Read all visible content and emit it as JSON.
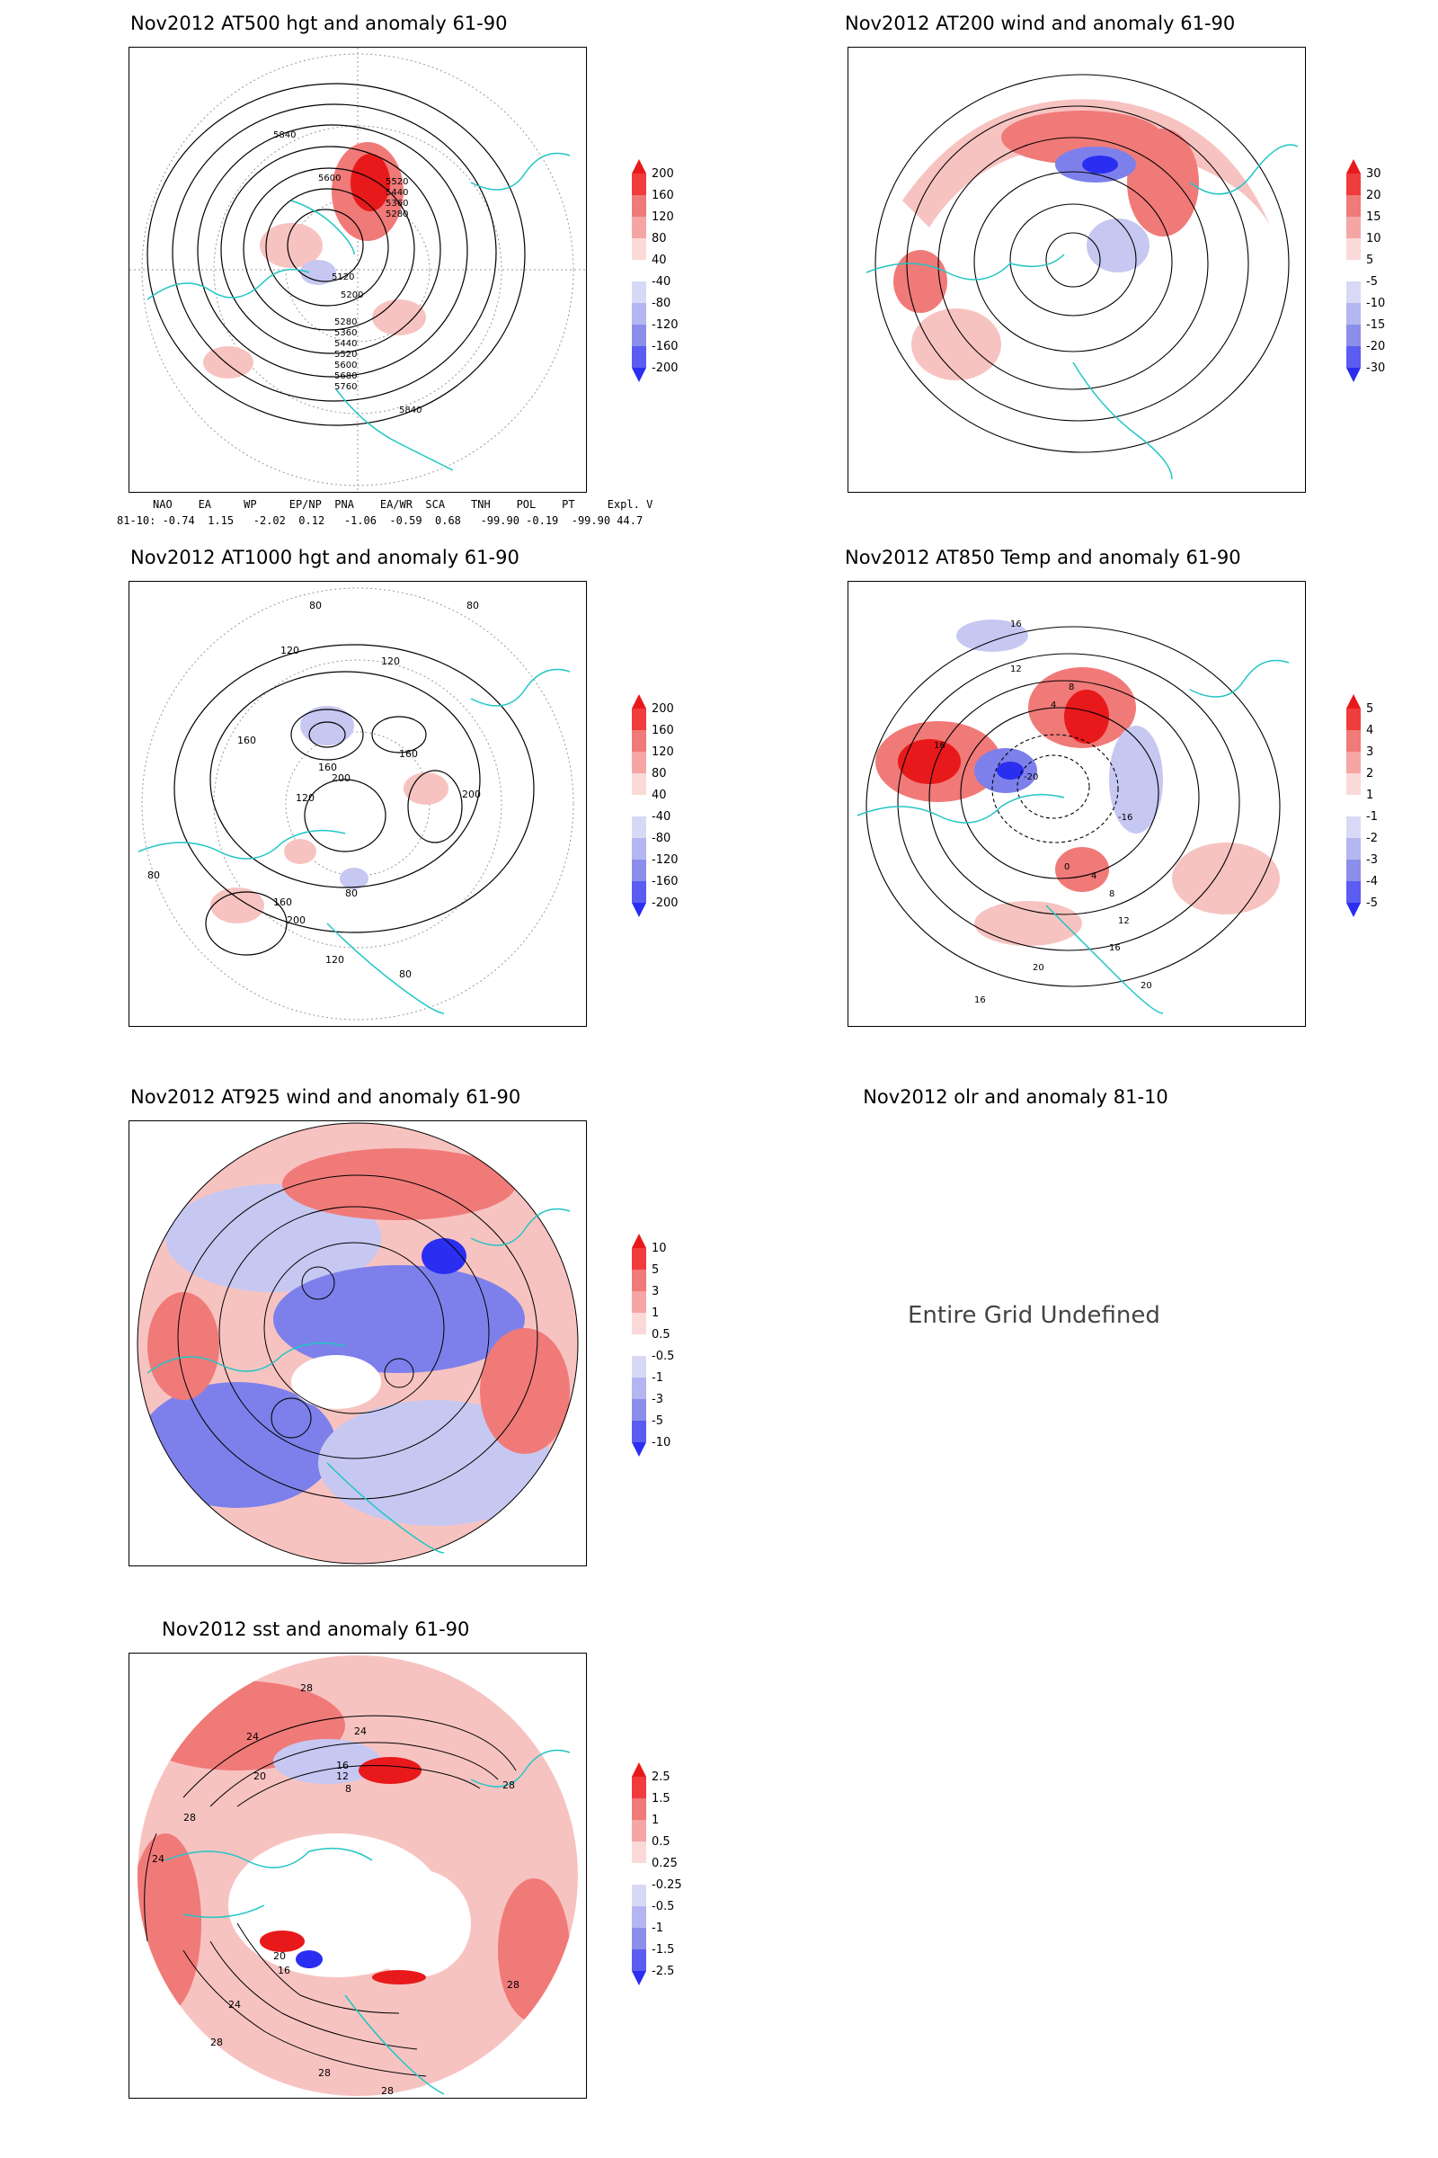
{
  "panels": [
    {
      "id": "p500",
      "title": "Nov2012 AT500 hgt and anomaly 61-90",
      "colorbar": [
        "200",
        "160",
        "120",
        "80",
        "40",
        "-40",
        "-80",
        "-120",
        "-160",
        "-200"
      ],
      "contour_labels": [
        "5840",
        "5600",
        "5520",
        "5440",
        "5360",
        "5280",
        "5120",
        "5200",
        "5280",
        "5360",
        "5440",
        "5520",
        "5600",
        "5680",
        "5760",
        "5840"
      ]
    },
    {
      "id": "p200",
      "title": "Nov2012 AT200 wind and anomaly 61-90",
      "colorbar": [
        "30",
        "20",
        "15",
        "10",
        "5",
        "-5",
        "-10",
        "-15",
        "-20",
        "-30"
      ],
      "contour_labels": []
    },
    {
      "id": "p1000",
      "title": "Nov2012 AT1000 hgt and anomaly 61-90",
      "colorbar": [
        "200",
        "160",
        "120",
        "80",
        "40",
        "-40",
        "-80",
        "-120",
        "-160",
        "-200"
      ],
      "contour_labels": [
        "80",
        "80",
        "120",
        "120",
        "160",
        "160",
        "200",
        "160",
        "200",
        "120",
        "80",
        "160",
        "200",
        "120",
        "80",
        "80"
      ]
    },
    {
      "id": "p850",
      "title": "Nov2012 AT850 Temp and anomaly 61-90",
      "colorbar": [
        "5",
        "4",
        "3",
        "2",
        "1",
        "-1",
        "-2",
        "-3",
        "-4",
        "-5"
      ],
      "contour_labels": [
        "16",
        "12",
        "8",
        "4",
        "16",
        "-20",
        "-16",
        "0",
        "4",
        "8",
        "12",
        "16",
        "20",
        "20",
        "16"
      ]
    },
    {
      "id": "p925",
      "title": "Nov2012 AT925 wind and anomaly 61-90",
      "colorbar": [
        "10",
        "5",
        "3",
        "1",
        "0.5",
        "-0.5",
        "-1",
        "-3",
        "-5",
        "-10"
      ],
      "contour_labels": []
    },
    {
      "id": "polr",
      "title": "Nov2012 olr and anomaly 81-10",
      "message": "Entire Grid Undefined"
    },
    {
      "id": "psst",
      "title": "Nov2012 sst and anomaly 61-90",
      "colorbar": [
        "2.5",
        "1.5",
        "1",
        "0.5",
        "0.25",
        "-0.25",
        "-0.5",
        "-1",
        "-1.5",
        "-2.5"
      ],
      "contour_labels": [
        "28",
        "24",
        "24",
        "20",
        "16",
        "12",
        "8",
        "28",
        "24",
        "28",
        "20",
        "16",
        "24",
        "28",
        "28",
        "28",
        "28"
      ]
    }
  ],
  "indices": {
    "header": [
      "NAO",
      "EA",
      "WP",
      "EP/NP",
      "PNA",
      "EA/WR",
      "SCA",
      "TNH",
      "POL",
      "PT",
      "Expl. Var."
    ],
    "row_label": "81-10:",
    "values": [
      "-0.74",
      "1.15",
      "-2.02",
      "0.12",
      "-1.06",
      "-0.59",
      "0.68",
      "-99.90",
      "-0.19",
      "-99.90",
      "44.7"
    ]
  },
  "colors": {
    "coastline": "#22c5c5",
    "positive_strong": "#e8191a",
    "positive_mid": "#f07a78",
    "positive_light": "#f7c3c1",
    "negative_light": "#c6c8f2",
    "negative_mid": "#7d80ea",
    "negative_strong": "#2a2ef0",
    "contour": "#000000"
  }
}
